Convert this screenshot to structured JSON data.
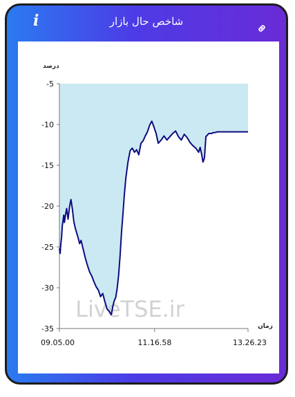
{
  "header": {
    "title": "شاخص حال بازار",
    "info_icon": "info-icon",
    "link_icon": "link-icon"
  },
  "chart_data": {
    "type": "area",
    "ylabel": "درصد",
    "xlabel": "زمان",
    "ylim": [
      -35,
      -5
    ],
    "yticks": [
      -5,
      -10,
      -15,
      -20,
      -25,
      -30,
      -35
    ],
    "xtick_labels": [
      "09.05.00",
      "11.16.58",
      "13.26.23"
    ],
    "x_range": [
      "09.05.00",
      "13.26.23"
    ],
    "watermark": "LiveTSE.ir",
    "fill_color": "#cbe9f2",
    "line_color": "#0b0b80",
    "series": [
      {
        "x": [
          "09.05.00",
          "09.06.00",
          "09.07.00",
          "09.08.00",
          "09.09.00",
          "09.10.00",
          "09.11.00",
          "09.12.00",
          "09.13.00",
          "09.15.00",
          "09.17.00",
          "09.19.00",
          "09.21.00",
          "09.23.00",
          "09.25.00",
          "09.27.00",
          "09.29.00",
          "09.31.00",
          "09.33.00",
          "09.35.00",
          "09.38.00",
          "09.41.00",
          "09.44.00",
          "09.47.00",
          "09.50.00",
          "09.53.00",
          "09.56.00",
          "09.59.00",
          "10.02.00",
          "10.05.00",
          "10.08.00",
          "10.11.00",
          "10.14.00",
          "10.17.00",
          "10.19.00",
          "10.21.00",
          "10.23.00",
          "10.25.00",
          "10.27.00",
          "10.29.00",
          "10.31.00",
          "10.33.00",
          "10.35.00",
          "10.37.00",
          "10.40.00",
          "10.43.00",
          "10.46.00",
          "10.49.00",
          "10.52.00",
          "10.55.00",
          "10.58.00",
          "11.01.00",
          "11.04.00",
          "11.07.00",
          "11.10.00",
          "11.13.00",
          "11.16.00",
          "11.19.00",
          "11.22.00",
          "11.26.00",
          "11.30.00",
          "11.34.00",
          "11.38.00",
          "11.42.00",
          "11.46.00",
          "11.50.00",
          "11.54.00",
          "11.58.00",
          "12.02.00",
          "12.06.00",
          "12.10.00",
          "12.14.00",
          "12.18.00",
          "12.20.00",
          "12.22.00",
          "12.24.00",
          "12.26.00",
          "12.28.00",
          "12.30.00",
          "12.32.00",
          "12.34.00",
          "12.36.00",
          "12.38.00",
          "12.40.00",
          "12.44.00",
          "12.50.00",
          "13.00.00",
          "13.10.00",
          "13.20.00",
          "13.26.23"
        ],
        "y": [
          -25.2,
          -25.8,
          -24.6,
          -23.8,
          -22.4,
          -21.8,
          -21.1,
          -22.0,
          -21.3,
          -20.3,
          -21.6,
          -20.1,
          -19.2,
          -20.4,
          -21.9,
          -22.7,
          -23.3,
          -23.9,
          -24.6,
          -24.2,
          -25.3,
          -26.4,
          -27.3,
          -28.1,
          -28.6,
          -29.3,
          -29.9,
          -30.3,
          -31.1,
          -30.7,
          -31.7,
          -32.6,
          -32.9,
          -33.3,
          -32.3,
          -31.6,
          -31.2,
          -30.1,
          -28.5,
          -26.2,
          -23.3,
          -21.0,
          -18.6,
          -16.6,
          -14.6,
          -13.2,
          -12.9,
          -13.4,
          -13.1,
          -13.7,
          -12.3,
          -12.0,
          -11.4,
          -10.9,
          -10.1,
          -9.6,
          -10.3,
          -11.1,
          -12.3,
          -11.9,
          -11.4,
          -11.9,
          -11.5,
          -11.1,
          -10.8,
          -11.5,
          -11.9,
          -11.2,
          -11.6,
          -12.2,
          -12.6,
          -12.9,
          -13.4,
          -12.8,
          -13.6,
          -14.6,
          -14.1,
          -11.5,
          -11.3,
          -11.1,
          -11.1,
          -11.1,
          -11.0,
          -11.0,
          -10.9,
          -10.9,
          -10.9,
          -10.9,
          -10.9,
          -10.9
        ]
      }
    ]
  }
}
